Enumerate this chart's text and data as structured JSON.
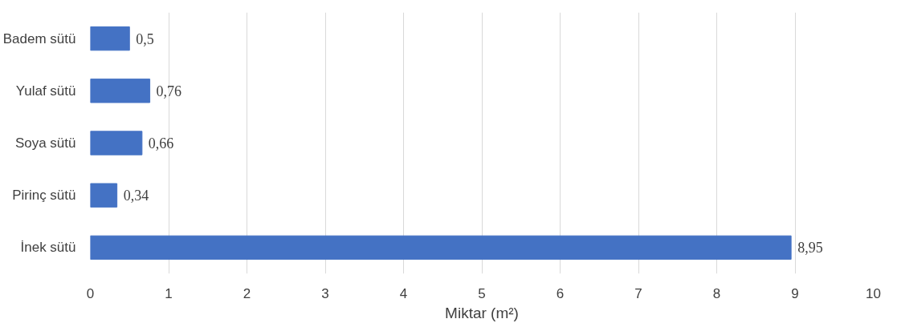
{
  "chart_data": {
    "type": "bar",
    "orientation": "horizontal",
    "xlabel": "Miktar (m²)",
    "categories": [
      "Badem sütü",
      "Yulaf sütü",
      "Soya sütü",
      "Pirinç sütü",
      "İnek sütü"
    ],
    "values": [
      0.5,
      0.76,
      0.66,
      0.34,
      8.95
    ],
    "value_labels": [
      "0,5",
      "0,76",
      "0,66",
      "0,34",
      "8,95"
    ],
    "color": "#4472c4",
    "xlim": [
      0,
      10
    ],
    "xticks": [
      0,
      1,
      2,
      3,
      4,
      5,
      6,
      7,
      8,
      9,
      10
    ],
    "grid": "x"
  }
}
